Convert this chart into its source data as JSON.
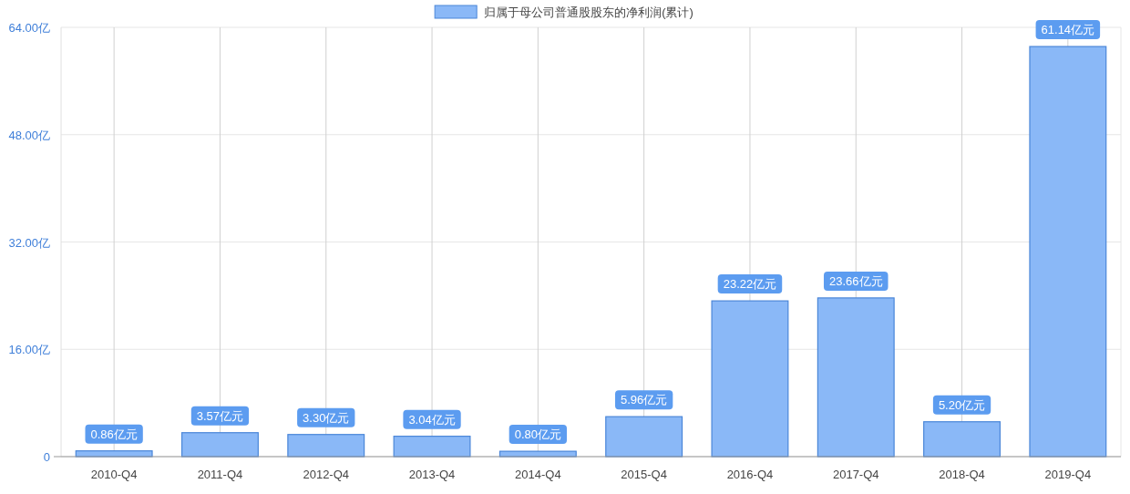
{
  "chart_data": {
    "type": "bar",
    "categories": [
      "2010-Q4",
      "2011-Q4",
      "2012-Q4",
      "2013-Q4",
      "2014-Q4",
      "2015-Q4",
      "2016-Q4",
      "2017-Q4",
      "2018-Q4",
      "2019-Q4"
    ],
    "series": [
      {
        "name": "归属于母公司普通股股东的净利润(累计)",
        "color": "#8ab8f7",
        "values": [
          0.86,
          3.57,
          3.3,
          3.04,
          0.8,
          5.96,
          23.22,
          23.66,
          5.2,
          61.14
        ]
      }
    ],
    "value_labels": [
      "0.86亿元",
      "3.57亿元",
      "3.30亿元",
      "3.04亿元",
      "0.80亿元",
      "5.96亿元",
      "23.22亿元",
      "23.66亿元",
      "5.20亿元",
      "61.14亿元"
    ],
    "ylim": [
      0,
      64
    ],
    "yticks": [
      0,
      {
        "value": 16,
        "label": "16.00亿"
      },
      {
        "value": 32,
        "label": "32.00亿"
      },
      {
        "value": 48,
        "label": "48.00亿"
      },
      {
        "value": 64,
        "label": "64.00亿"
      }
    ],
    "grid": true,
    "legend": "top"
  }
}
